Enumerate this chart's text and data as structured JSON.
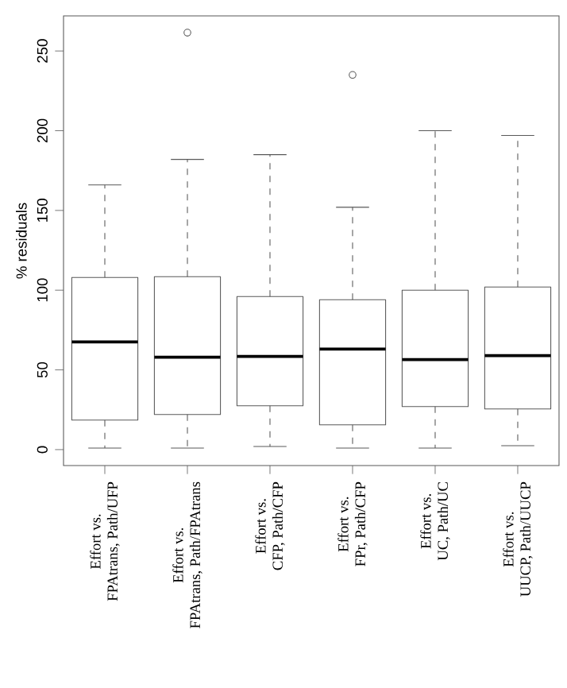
{
  "chart_data": {
    "type": "box",
    "ylabel": "% residuals",
    "categories": [
      "Effort vs.\nFPAtrans, Path/UFP",
      "Effort vs.\nFPAtrans, Path/FPAtrans",
      "Effort vs.\nCFP, Path/CFP",
      "Effort vs.\nFPr, Path/CFP",
      "Effort vs.\nUC, Path/UC",
      "Effort vs.\nUUCP, Path/UUCP"
    ],
    "boxes": [
      {
        "low": 1,
        "q1": 18.5,
        "median": 67.5,
        "q3": 108,
        "high": 166
      },
      {
        "low": 1,
        "q1": 22,
        "median": 58,
        "q3": 108.5,
        "high": 182,
        "outliers": [
          261.5
        ]
      },
      {
        "low": 2,
        "q1": 27.5,
        "median": 58.5,
        "q3": 96,
        "high": 185
      },
      {
        "low": 1,
        "q1": 15.5,
        "median": 63,
        "q3": 94,
        "high": 152,
        "outliers": [
          235
        ]
      },
      {
        "low": 1,
        "q1": 27,
        "median": 56.5,
        "q3": 100,
        "high": 200
      },
      {
        "low": 2.5,
        "q1": 25.5,
        "median": 59,
        "q3": 102,
        "high": 197
      }
    ],
    "ylim": [
      -10,
      272
    ],
    "yticks": [
      0,
      50,
      100,
      150,
      200,
      250
    ],
    "marker": "circle"
  }
}
